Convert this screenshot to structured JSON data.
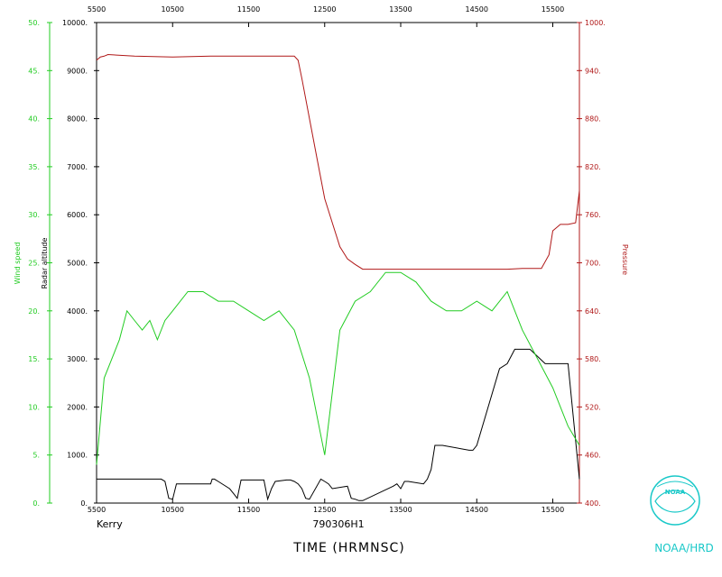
{
  "chart_data": {
    "type": "line",
    "flight_id": "790306H1",
    "storm_name": "Kerry",
    "xlabel": "TIME (HRMNSC)",
    "credit": "NOAA/HRD",
    "logo_text": "NOAA",
    "x_ticks": [
      "5500",
      "10500",
      "11500",
      "12500",
      "13500",
      "14500",
      "15500"
    ],
    "xlim": [
      0,
      6.35
    ],
    "axes": {
      "wind": {
        "label": "Wind speed",
        "ylim": [
          0,
          50
        ],
        "ticks": [
          "0.",
          "5.",
          "10.",
          "15.",
          "20.",
          "25.",
          "30.",
          "35.",
          "40.",
          "45.",
          "50."
        ],
        "color": "#22cc22"
      },
      "alt": {
        "label": "Radar altitude",
        "ylim": [
          0,
          10000
        ],
        "ticks": [
          "0.",
          "1000.",
          "2000.",
          "3000.",
          "4000.",
          "5000.",
          "6000.",
          "7000.",
          "8000.",
          "9000.",
          "10000."
        ],
        "color": "#000000"
      },
      "pres": {
        "label": "Pressure",
        "ylim": [
          400,
          1000
        ],
        "ticks": [
          "400.",
          "460.",
          "520.",
          "580.",
          "640.",
          "700.",
          "760.",
          "820.",
          "880.",
          "940.",
          "1000."
        ],
        "color": "#b01818"
      }
    },
    "series": [
      {
        "name": "Pressure",
        "axis": "pres",
        "color": "#b01818",
        "x": [
          0,
          0.05,
          0.1,
          0.15,
          0.5,
          1.0,
          1.5,
          2.0,
          2.4,
          2.6,
          2.65,
          2.7,
          2.8,
          2.9,
          3.0,
          3.1,
          3.2,
          3.3,
          3.4,
          3.5,
          3.6,
          3.7,
          3.8,
          4.0,
          4.5,
          4.7,
          4.8,
          4.9,
          5.0,
          5.1,
          5.2,
          5.3,
          5.4,
          5.6,
          5.85,
          5.95,
          6.0,
          6.1,
          6.2,
          6.3,
          6.35
        ],
        "y": [
          953,
          957,
          958,
          960,
          958,
          957,
          958,
          958,
          958,
          958,
          953,
          930,
          880,
          830,
          780,
          750,
          720,
          705,
          698,
          692,
          692,
          692,
          692,
          692,
          692,
          692,
          692,
          692,
          692,
          692,
          692,
          692,
          692,
          693,
          693,
          710,
          740,
          748,
          748,
          750,
          790
        ]
      },
      {
        "name": "Radar altitude",
        "axis": "alt",
        "color": "#000000",
        "x": [
          0,
          0.35,
          0.4,
          0.45,
          0.5,
          0.85,
          0.9,
          0.95,
          1.0,
          1.05,
          1.5,
          1.52,
          1.55,
          1.6,
          1.75,
          1.8,
          1.85,
          1.9,
          2.2,
          2.25,
          2.3,
          2.35,
          2.5,
          2.55,
          2.6,
          2.65,
          2.7,
          2.75,
          2.8,
          2.95,
          3.0,
          3.05,
          3.1,
          3.3,
          3.35,
          3.4,
          3.45,
          3.5,
          3.9,
          3.95,
          4.0,
          4.05,
          4.1,
          4.3,
          4.35,
          4.4,
          4.45,
          4.5,
          4.55,
          4.9,
          4.95,
          5.0,
          5.3,
          5.4,
          5.5,
          5.6,
          5.7,
          5.9,
          6.2,
          6.35
        ],
        "y": [
          500,
          500,
          500,
          500,
          500,
          500,
          450,
          100,
          80,
          400,
          400,
          500,
          500,
          450,
          300,
          200,
          100,
          480,
          480,
          80,
          300,
          450,
          480,
          480,
          450,
          400,
          300,
          100,
          80,
          500,
          450,
          400,
          300,
          350,
          100,
          80,
          50,
          50,
          350,
          400,
          300,
          450,
          450,
          400,
          500,
          700,
          1200,
          1200,
          1200,
          1100,
          1100,
          1200,
          2800,
          2900,
          3200,
          3200,
          3200,
          2900,
          2900,
          500
        ]
      },
      {
        "name": "Wind speed",
        "axis": "wind",
        "color": "#22cc22",
        "x": [
          0,
          0.1,
          0.2,
          0.3,
          0.4,
          0.5,
          0.6,
          0.7,
          0.8,
          0.9,
          1.0,
          1.2,
          1.4,
          1.6,
          1.8,
          2.0,
          2.2,
          2.4,
          2.6,
          2.8,
          3.0,
          3.2,
          3.4,
          3.6,
          3.8,
          4.0,
          4.2,
          4.4,
          4.6,
          4.8,
          5.0,
          5.2,
          5.4,
          5.6,
          5.8,
          6.0,
          6.2,
          6.35
        ],
        "y": [
          4,
          13,
          15,
          17,
          20,
          19,
          18,
          19,
          17,
          19,
          20,
          22,
          22,
          21,
          21,
          20,
          19,
          20,
          18,
          13,
          5,
          18,
          21,
          22,
          24,
          24,
          23,
          21,
          20,
          20,
          21,
          20,
          22,
          18,
          15,
          12,
          8,
          6
        ]
      }
    ]
  }
}
